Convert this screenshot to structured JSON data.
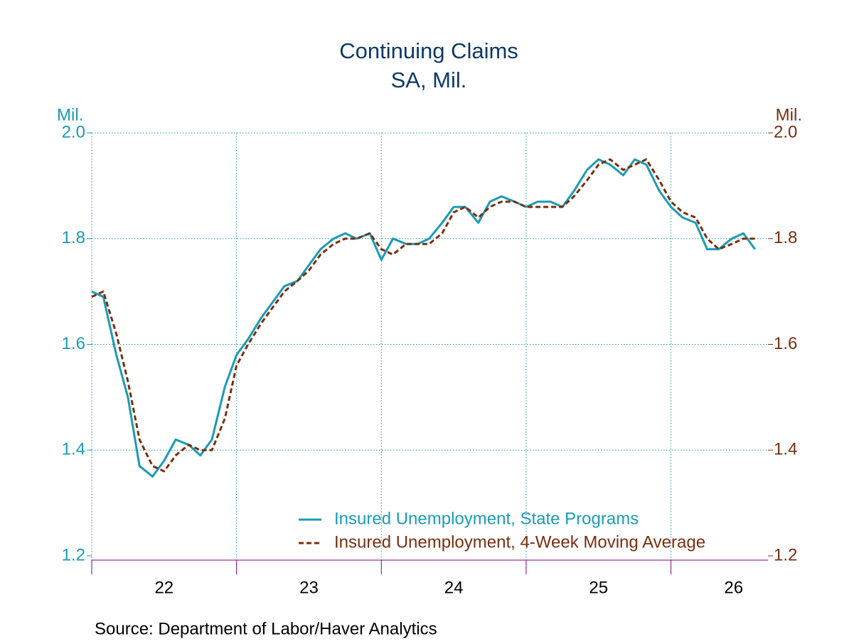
{
  "chart_data": {
    "type": "line",
    "title": "Continuing Claims",
    "subtitle": "SA, Mil.",
    "y_label": "Mil.",
    "y2_label": "Mil.",
    "source": "Source:  Department of Labor/Haver Analytics",
    "x": [
      2022,
      2022.08,
      2022.17,
      2022.25,
      2022.33,
      2022.42,
      2022.5,
      2022.58,
      2022.67,
      2022.75,
      2022.83,
      2022.92,
      2023,
      2023.08,
      2023.17,
      2023.25,
      2023.33,
      2023.42,
      2023.5,
      2023.58,
      2023.67,
      2023.75,
      2023.83,
      2023.92,
      2024,
      2024.08,
      2024.17,
      2024.25,
      2024.33,
      2024.42,
      2024.5,
      2024.58,
      2024.67,
      2024.75,
      2024.83,
      2024.92,
      2025,
      2025.08,
      2025.17,
      2025.25,
      2025.33,
      2025.42,
      2025.5,
      2025.58,
      2025.67,
      2025.75,
      2025.83,
      2025.92,
      2026,
      2026.08,
      2026.17,
      2026.25,
      2026.33,
      2026.42,
      2026.5,
      2026.58
    ],
    "series": [
      {
        "name": "Insured Unemployment, State Programs",
        "color": "#1a9bb5",
        "dash": false,
        "values": [
          1.7,
          1.69,
          1.58,
          1.5,
          1.37,
          1.35,
          1.38,
          1.42,
          1.41,
          1.39,
          1.42,
          1.52,
          1.58,
          1.61,
          1.65,
          1.68,
          1.71,
          1.72,
          1.75,
          1.78,
          1.8,
          1.81,
          1.8,
          1.81,
          1.76,
          1.8,
          1.79,
          1.79,
          1.8,
          1.83,
          1.86,
          1.86,
          1.83,
          1.87,
          1.88,
          1.87,
          1.86,
          1.87,
          1.87,
          1.86,
          1.89,
          1.93,
          1.95,
          1.94,
          1.92,
          1.95,
          1.94,
          1.89,
          1.86,
          1.84,
          1.83,
          1.78,
          1.78,
          1.8,
          1.81,
          1.78
        ]
      },
      {
        "name": "Insured Unemployment, 4-Week Moving Average",
        "color": "#7a2e0e",
        "dash": true,
        "axis": "y2",
        "values": [
          1.69,
          1.7,
          1.62,
          1.53,
          1.42,
          1.37,
          1.36,
          1.39,
          1.41,
          1.4,
          1.4,
          1.46,
          1.56,
          1.6,
          1.64,
          1.67,
          1.7,
          1.72,
          1.74,
          1.77,
          1.79,
          1.8,
          1.8,
          1.81,
          1.78,
          1.77,
          1.79,
          1.79,
          1.79,
          1.81,
          1.85,
          1.86,
          1.84,
          1.86,
          1.87,
          1.87,
          1.86,
          1.86,
          1.86,
          1.86,
          1.88,
          1.91,
          1.94,
          1.95,
          1.93,
          1.94,
          1.95,
          1.91,
          1.87,
          1.85,
          1.84,
          1.8,
          1.78,
          1.79,
          1.8,
          1.8
        ]
      }
    ],
    "xlim": [
      2022,
      2026.67
    ],
    "xticks": [
      {
        "value": 2022,
        "label": "22"
      },
      {
        "value": 2023,
        "label": "23"
      },
      {
        "value": 2024,
        "label": "24"
      },
      {
        "value": 2025,
        "label": "25"
      },
      {
        "value": 2026,
        "label": "26"
      }
    ],
    "ylim": [
      1.2,
      2.0
    ],
    "yticks": [
      1.2,
      1.4,
      1.6,
      1.8,
      {
        "value": 2.0,
        "label": "2.0"
      }
    ],
    "y2lim": [
      1.2,
      2.0
    ],
    "y2ticks": [
      1.2,
      1.4,
      1.6,
      1.8,
      {
        "value": 2.0,
        "label": "2.0"
      }
    ],
    "y_color": "#1a9bb5",
    "y2_color": "#7a2e0e",
    "grid": true,
    "legend": "lower right"
  }
}
